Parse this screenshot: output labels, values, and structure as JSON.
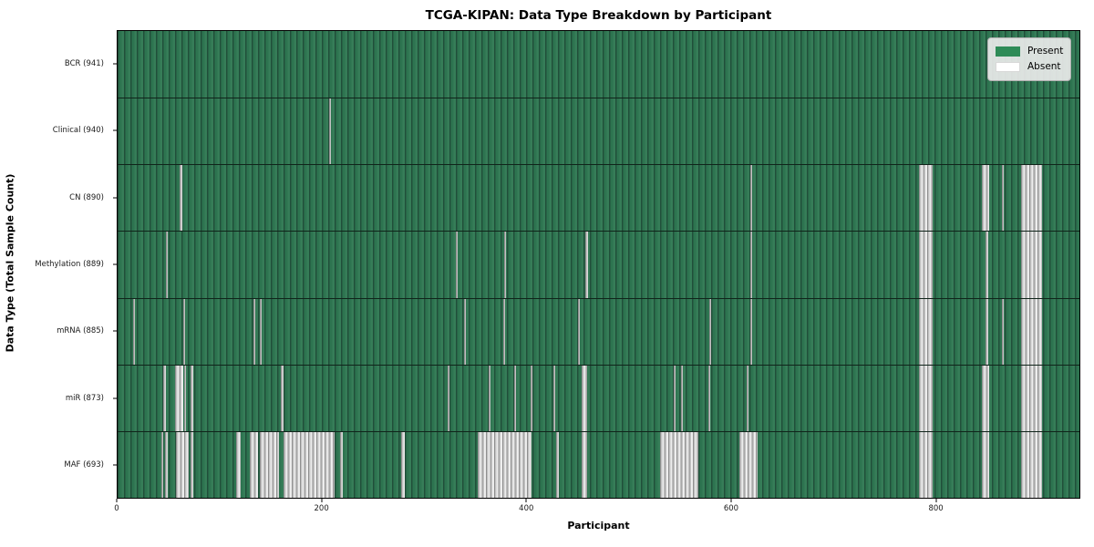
{
  "chart_data": {
    "type": "heatmap",
    "title": "TCGA-KIPAN: Data Type Breakdown by Participant",
    "xlabel": "Participant",
    "ylabel": "Data Type (Total Sample Count)",
    "xlim": [
      0,
      941
    ],
    "n_participants": 941,
    "x_ticks": [
      0,
      200,
      400,
      600,
      800
    ],
    "x_tick_labels": [
      "0",
      "200",
      "400",
      "600",
      "800"
    ],
    "grid": false,
    "legend_position": "upper right",
    "present_color": "#2e8b57",
    "absent_color": "#ffffff",
    "legend_items": [
      {
        "label": "Present",
        "color": "#2e8b57"
      },
      {
        "label": "Absent",
        "color": "#ffffff"
      }
    ],
    "rows": [
      {
        "label": "BCR (941)",
        "name": "BCR",
        "present_count": 941,
        "absent_ranges": []
      },
      {
        "label": "Clinical (940)",
        "name": "Clinical",
        "present_count": 940,
        "absent_ranges": [
          [
            207,
            209
          ]
        ]
      },
      {
        "label": "CN (890)",
        "name": "CN",
        "present_count": 890,
        "absent_ranges": [
          [
            61,
            63
          ],
          [
            619,
            621
          ],
          [
            784,
            797
          ],
          [
            846,
            853
          ],
          [
            865,
            867
          ],
          [
            884,
            904
          ]
        ]
      },
      {
        "label": "Methylation (889)",
        "name": "Methylation",
        "present_count": 889,
        "absent_ranges": [
          [
            47,
            49
          ],
          [
            331,
            333
          ],
          [
            378,
            380
          ],
          [
            458,
            460
          ],
          [
            619,
            621
          ],
          [
            784,
            797
          ],
          [
            849,
            852
          ],
          [
            884,
            904
          ]
        ]
      },
      {
        "label": "mRNA (885)",
        "name": "mRNA",
        "present_count": 885,
        "absent_ranges": [
          [
            15,
            17
          ],
          [
            64,
            66
          ],
          [
            133,
            135
          ],
          [
            139,
            141
          ],
          [
            339,
            341
          ],
          [
            377,
            379
          ],
          [
            450,
            452
          ],
          [
            579,
            581
          ],
          [
            619,
            621
          ],
          [
            784,
            797
          ],
          [
            849,
            852
          ],
          [
            865,
            867
          ],
          [
            884,
            904
          ]
        ]
      },
      {
        "label": "miR (873)",
        "name": "miR",
        "present_count": 873,
        "absent_ranges": [
          [
            45,
            47
          ],
          [
            56,
            64
          ],
          [
            65,
            67
          ],
          [
            71,
            74
          ],
          [
            160,
            162
          ],
          [
            323,
            325
          ],
          [
            363,
            365
          ],
          [
            388,
            390
          ],
          [
            404,
            406
          ],
          [
            426,
            428
          ],
          [
            454,
            459
          ],
          [
            544,
            546
          ],
          [
            551,
            553
          ],
          [
            578,
            580
          ],
          [
            615,
            617
          ],
          [
            784,
            797
          ],
          [
            846,
            853
          ],
          [
            884,
            904
          ]
        ]
      },
      {
        "label": "MAF (693)",
        "name": "MAF",
        "present_count": 693,
        "absent_ranges": [
          [
            43,
            45
          ],
          [
            46,
            49
          ],
          [
            57,
            70
          ],
          [
            71,
            74
          ],
          [
            116,
            120
          ],
          [
            129,
            137
          ],
          [
            139,
            158
          ],
          [
            162,
            212
          ],
          [
            218,
            220
          ],
          [
            277,
            281
          ],
          [
            352,
            405
          ],
          [
            429,
            432
          ],
          [
            454,
            459
          ],
          [
            531,
            568
          ],
          [
            608,
            626
          ],
          [
            784,
            797
          ],
          [
            846,
            853
          ],
          [
            884,
            904
          ]
        ]
      }
    ]
  }
}
